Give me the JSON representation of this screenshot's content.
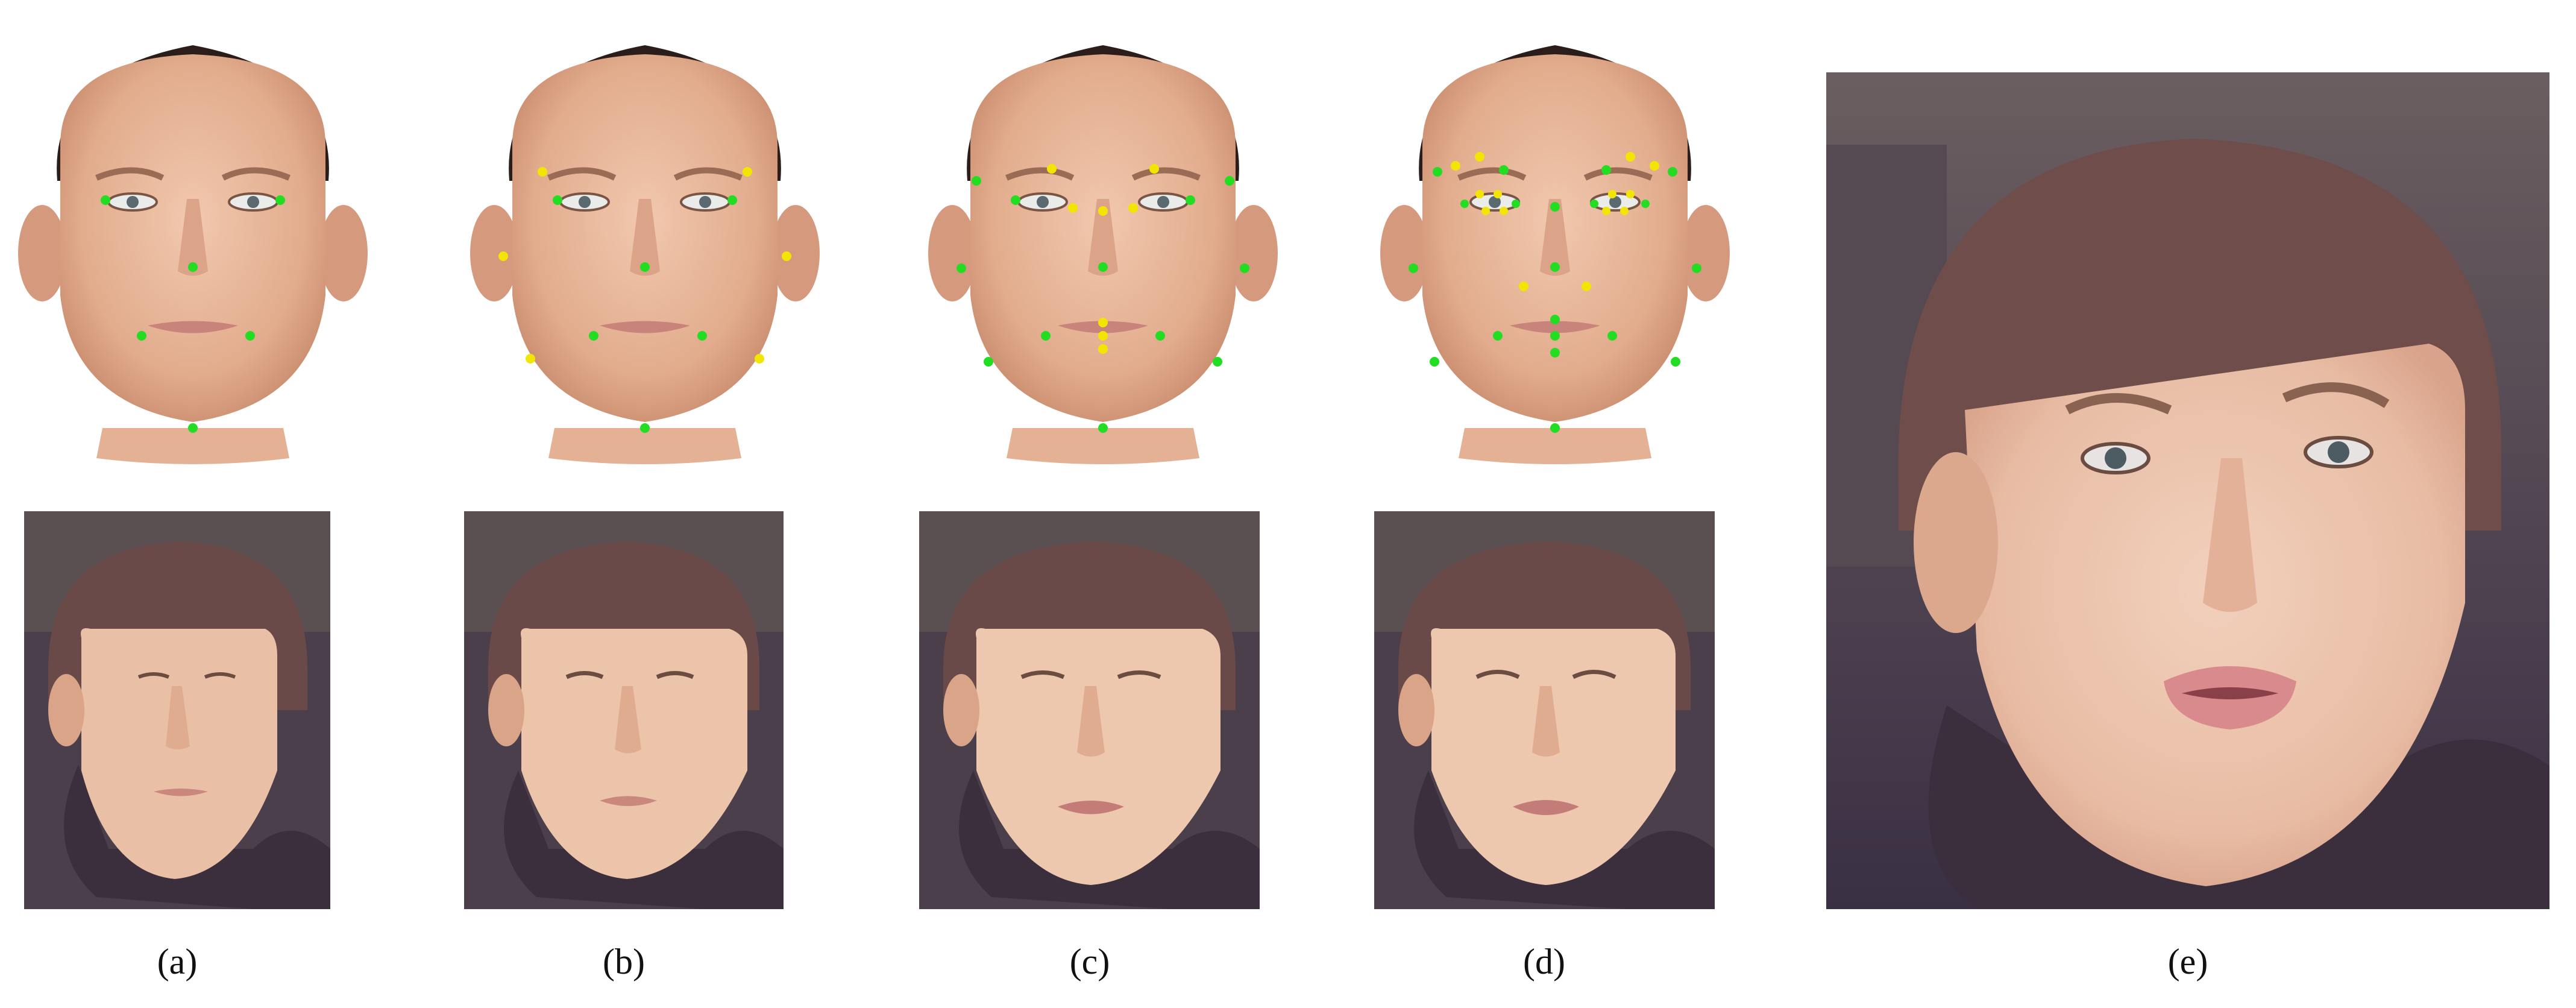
{
  "figure": {
    "panels": [
      {
        "id": "a",
        "label": "(a)",
        "landmarks": {
          "green": 7,
          "yellow": 0
        }
      },
      {
        "id": "b",
        "label": "(b)",
        "landmarks": {
          "green": 7,
          "yellow": 6
        }
      },
      {
        "id": "c",
        "label": "(c)",
        "landmarks": {
          "green": 11,
          "yellow": 8
        }
      },
      {
        "id": "d",
        "label": "(d)",
        "landmarks": {
          "green": 19,
          "yellow": 14
        }
      },
      {
        "id": "e",
        "label": "(e)"
      }
    ]
  },
  "colors": {
    "landmark_green": "#22dd22",
    "landmark_yellow": "#f2e600",
    "model_skin": "#e8b89a",
    "photo_background": "#4a3f4a",
    "hair": "#6a4a48"
  }
}
